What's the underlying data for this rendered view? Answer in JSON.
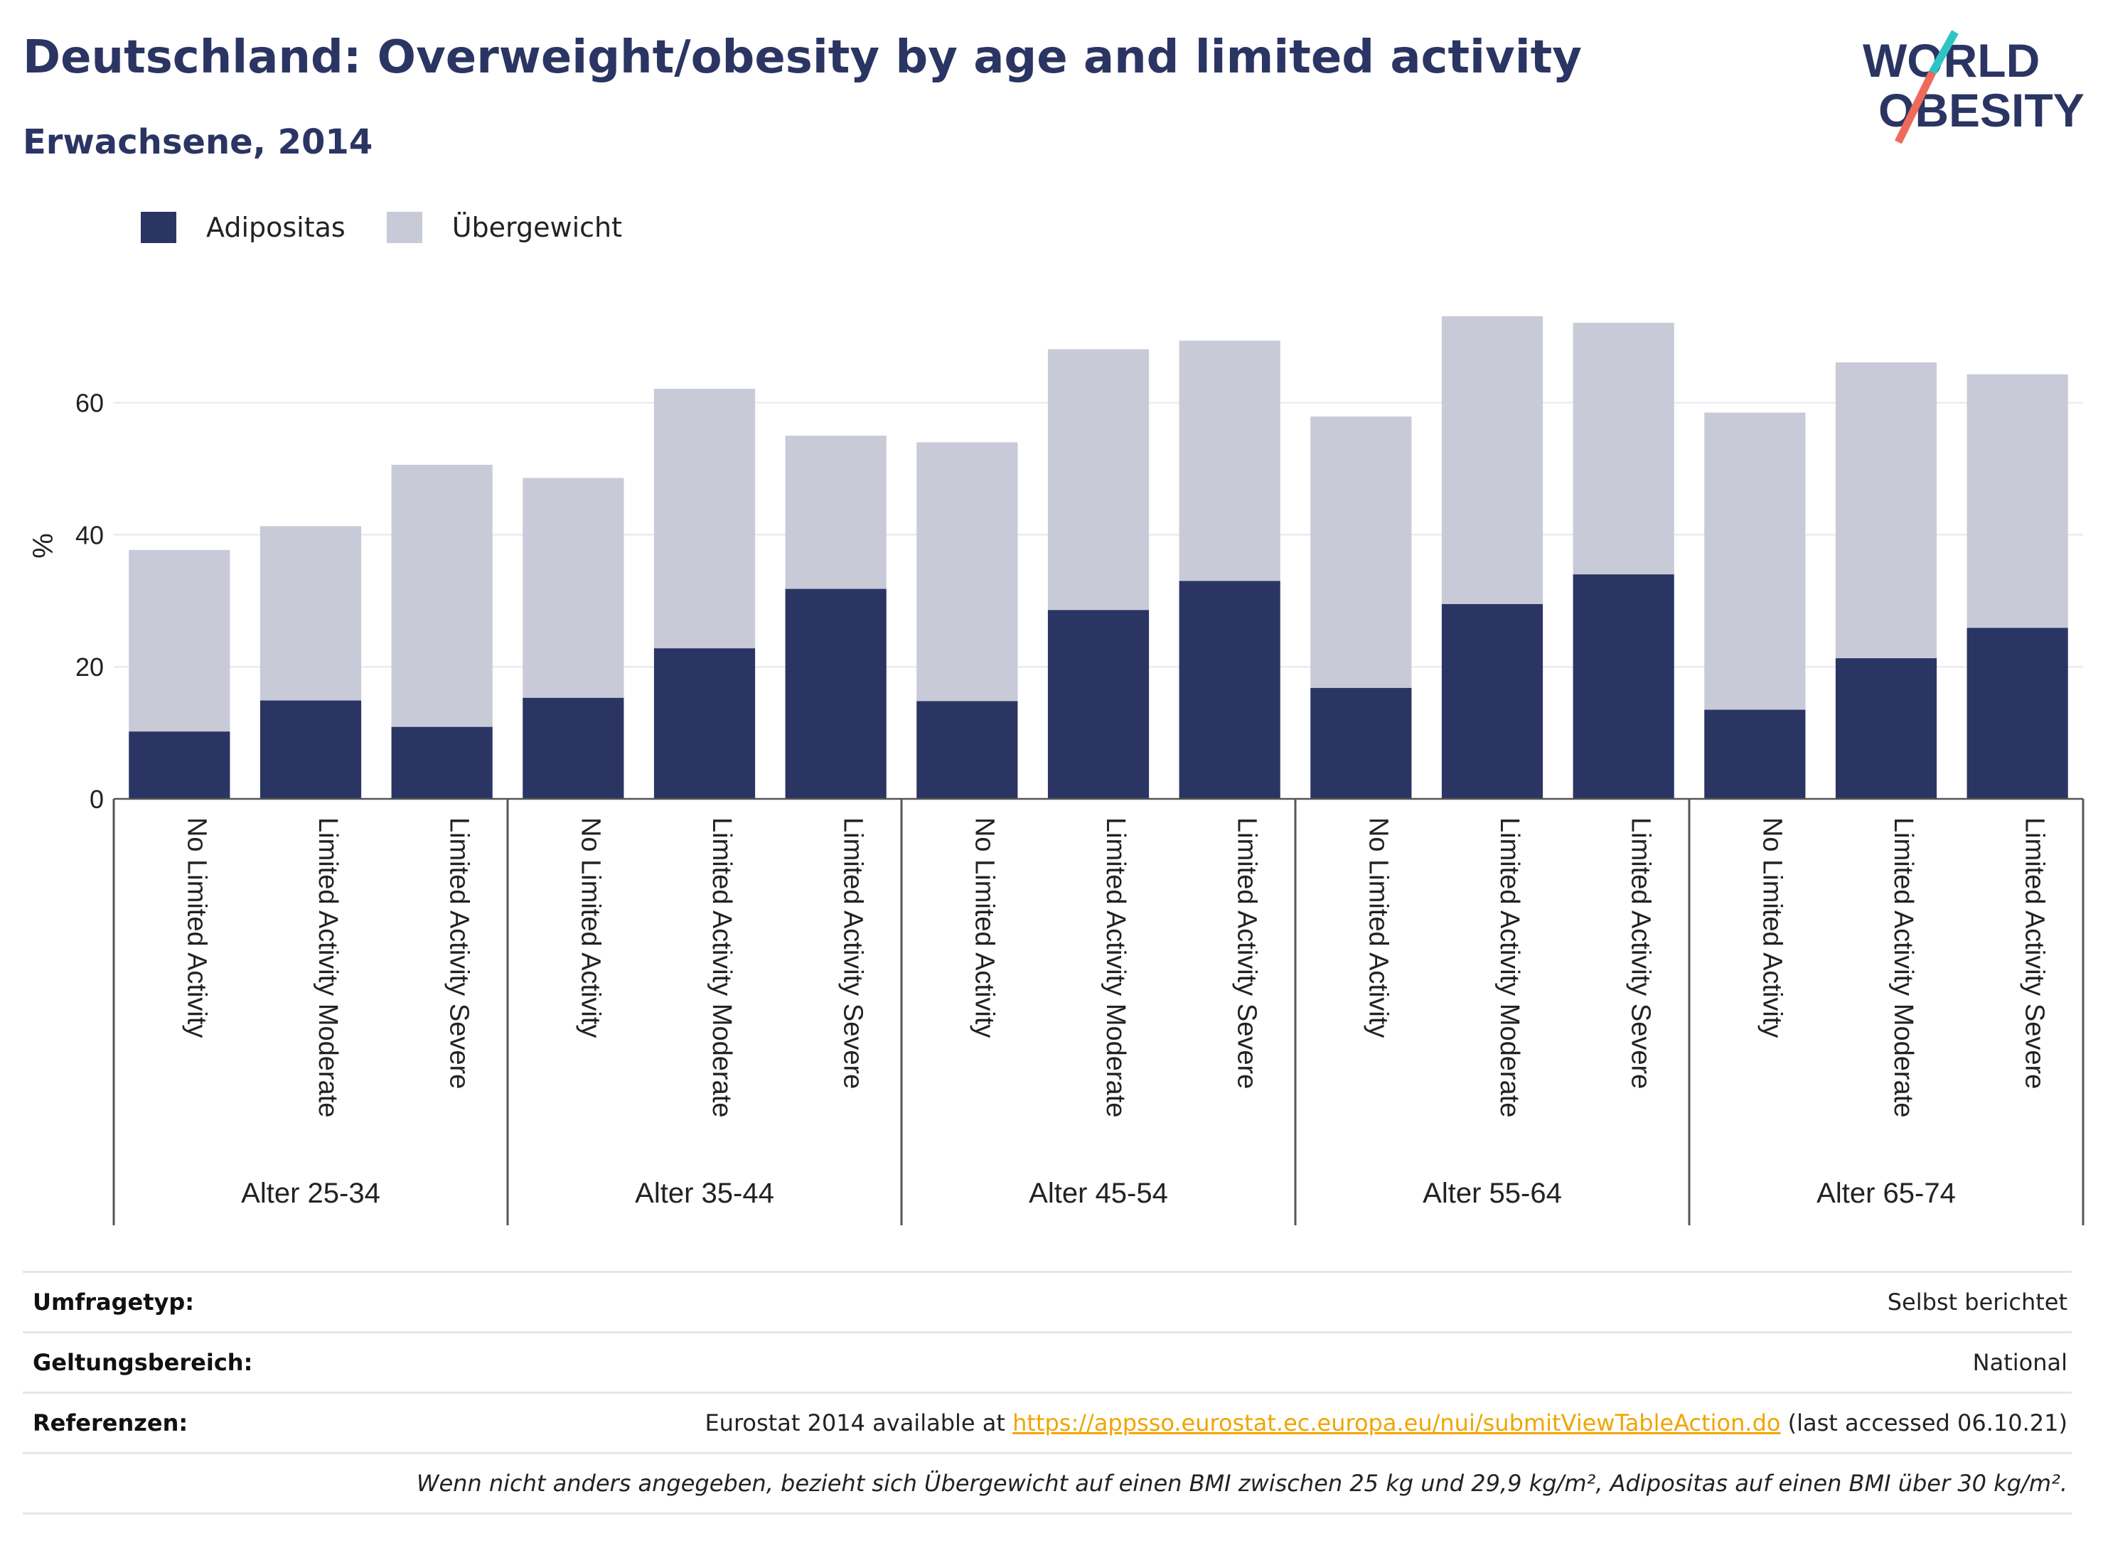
{
  "title": "Deutschland: Overweight/obesity by age and limited activity",
  "subtitle": "Erwachsene, 2014",
  "logo": {
    "line1": "WORLD",
    "line2": "OBESITY"
  },
  "colors": {
    "obesity": "#2b3563",
    "overweight": "#c8cad8",
    "title": "#2b3563",
    "link": "#f0a500",
    "grid": "#e6e6ec",
    "axis": "#444444"
  },
  "chart_data": {
    "type": "bar",
    "stacked": true,
    "ylabel": "%",
    "ylim": [
      0,
      75
    ],
    "yticks": [
      0,
      20,
      40,
      60
    ],
    "grid": true,
    "legend_position": "top-left",
    "groups": [
      "Alter 25-34",
      "Alter 35-44",
      "Alter 45-54",
      "Alter 55-64",
      "Alter 65-74"
    ],
    "subcategories": [
      "No Limited Activity",
      "Limited Activity Moderate",
      "Limited Activity Severe"
    ],
    "series": [
      {
        "name": "Adipositas",
        "color": "#2b3563",
        "values": [
          10.2,
          14.9,
          10.9,
          15.3,
          22.8,
          31.8,
          14.8,
          28.6,
          33.0,
          16.8,
          29.5,
          34.0,
          13.5,
          21.3,
          25.9
        ]
      },
      {
        "name": "Übergewicht",
        "color": "#c8cad8",
        "values": [
          27.5,
          26.4,
          39.7,
          33.3,
          39.3,
          23.2,
          39.2,
          39.5,
          36.4,
          41.1,
          43.6,
          38.1,
          45.0,
          44.8,
          38.4
        ]
      }
    ]
  },
  "info": {
    "survey_label": "Umfragetyp:",
    "survey_value": "Selbst berichtet",
    "scope_label": "Geltungsbereich:",
    "scope_value": "National",
    "ref_label": "Referenzen:",
    "ref_prefix": "Eurostat 2014 available at",
    "ref_link": "https://appsso.eurostat.ec.europa.eu/nui/submitViewTableAction.do",
    "ref_suffix": "(last accessed 06.10.21)",
    "note": "Wenn nicht anders angegeben, bezieht sich Übergewicht auf einen BMI zwischen 25 kg und 29,9 kg/m², Adipositas auf einen BMI über 30 kg/m²."
  }
}
